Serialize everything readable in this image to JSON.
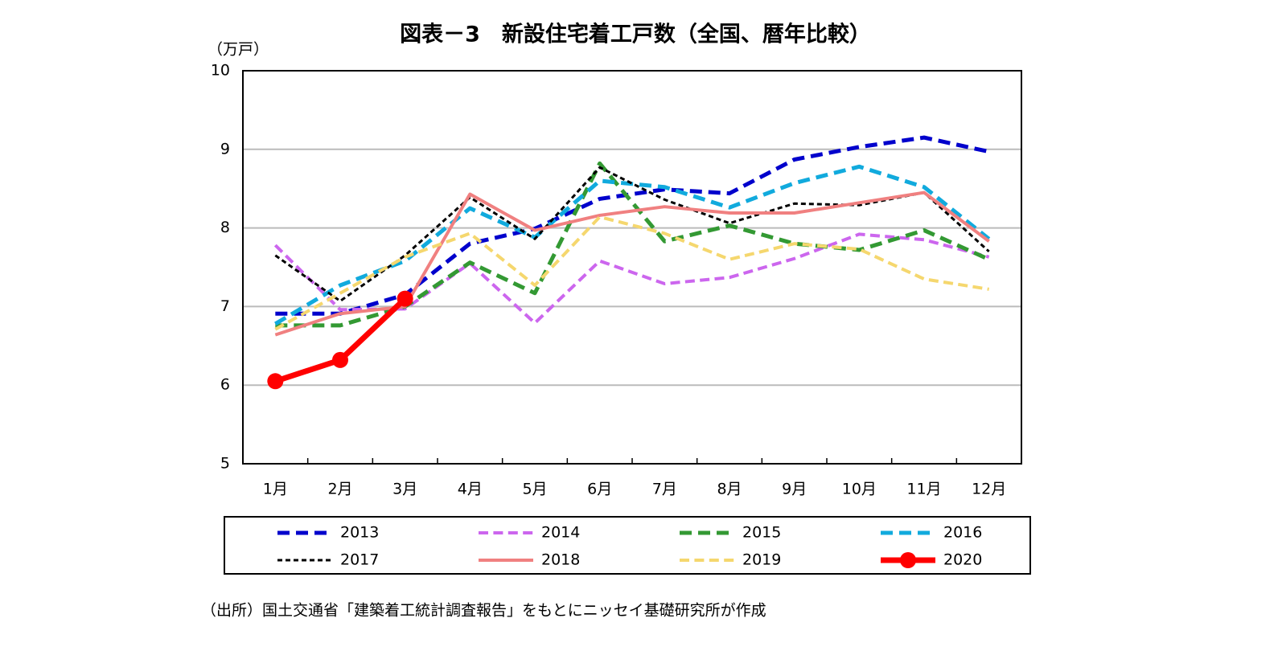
{
  "chart_data": {
    "type": "line",
    "title": "図表－3　新設住宅着工戸数（全国、暦年比較）",
    "y_unit": "（万戸）",
    "source": "（出所）国土交通省「建築着工統計調査報告」をもとにニッセイ基礎研究所が作成",
    "categories": [
      "1月",
      "2月",
      "3月",
      "4月",
      "5月",
      "6月",
      "7月",
      "8月",
      "9月",
      "10月",
      "11月",
      "12月"
    ],
    "ylim": [
      5,
      10
    ],
    "yticks": [
      5,
      6,
      7,
      8,
      9,
      10
    ],
    "grid": true,
    "series": [
      {
        "name": "2013",
        "color": "#0000cc",
        "style": "dashed",
        "values": [
          6.91,
          6.91,
          7.15,
          7.8,
          7.99,
          8.37,
          8.49,
          8.44,
          8.87,
          9.03,
          9.15,
          8.97
        ]
      },
      {
        "name": "2014",
        "color": "#cc66ee",
        "style": "dashed",
        "values": [
          7.78,
          6.96,
          6.97,
          7.55,
          6.79,
          7.58,
          7.29,
          7.37,
          7.61,
          7.92,
          7.85,
          7.63
        ]
      },
      {
        "name": "2015",
        "color": "#339933",
        "style": "dashed",
        "values": [
          6.76,
          6.76,
          7.0,
          7.56,
          7.17,
          8.82,
          7.83,
          8.03,
          7.8,
          7.72,
          7.97,
          7.6
        ]
      },
      {
        "name": "2016",
        "color": "#11aadd",
        "style": "dashed",
        "values": [
          6.78,
          7.27,
          7.58,
          8.25,
          7.88,
          8.6,
          8.52,
          8.26,
          8.57,
          8.78,
          8.52,
          7.86
        ]
      },
      {
        "name": "2017",
        "color": "#000000",
        "style": "dotted",
        "values": [
          7.65,
          7.07,
          7.65,
          8.39,
          7.86,
          8.77,
          8.36,
          8.06,
          8.31,
          8.29,
          8.45,
          7.7
        ]
      },
      {
        "name": "2018",
        "color": "#f08080",
        "style": "solid",
        "values": [
          6.64,
          6.91,
          7.0,
          8.43,
          7.97,
          8.16,
          8.27,
          8.19,
          8.19,
          8.32,
          8.45,
          7.83
        ]
      },
      {
        "name": "2019",
        "color": "#f5d76e",
        "style": "dashed",
        "values": [
          6.71,
          7.17,
          7.63,
          7.93,
          7.27,
          8.14,
          7.93,
          7.6,
          7.8,
          7.73,
          7.35,
          7.22
        ]
      },
      {
        "name": "2020",
        "color": "#ff0000",
        "style": "solid",
        "marker": true,
        "values": [
          6.05,
          6.32,
          7.1,
          null,
          null,
          null,
          null,
          null,
          null,
          null,
          null,
          null
        ]
      }
    ]
  }
}
